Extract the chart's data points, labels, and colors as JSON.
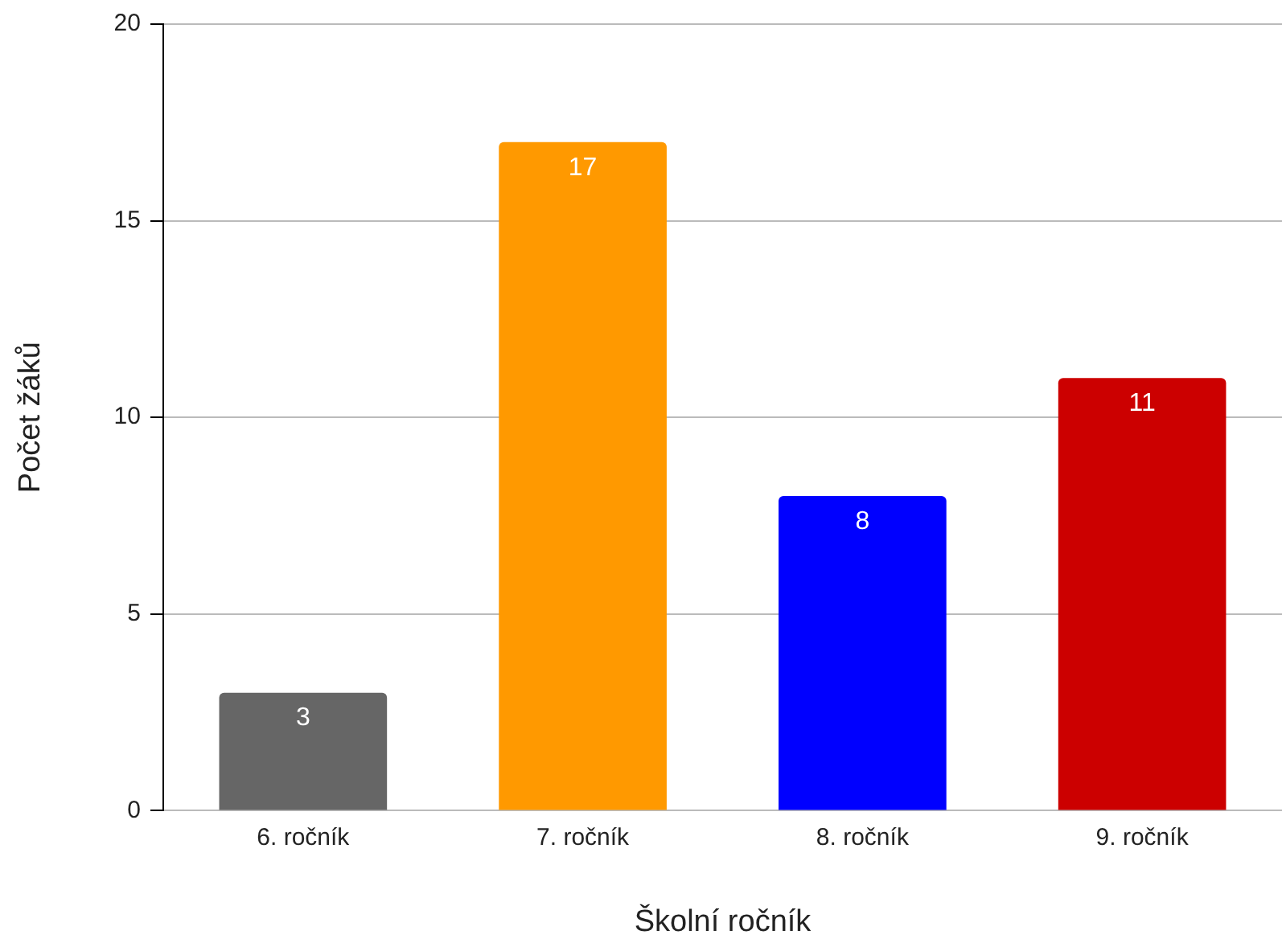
{
  "chart_data": {
    "type": "bar",
    "xlabel": "Školní ročník",
    "ylabel": "Počet žáků",
    "categories": [
      "6. ročník",
      "7. ročník",
      "8. ročník",
      "9. ročník"
    ],
    "values": [
      3,
      17,
      8,
      11
    ],
    "colors": [
      "#666666",
      "#ff9900",
      "#0000ff",
      "#cc0000"
    ],
    "ylim": [
      0,
      20
    ],
    "yticks": [
      0,
      5,
      10,
      15,
      20
    ],
    "grid": "y",
    "legend": false,
    "data_labels": true
  }
}
